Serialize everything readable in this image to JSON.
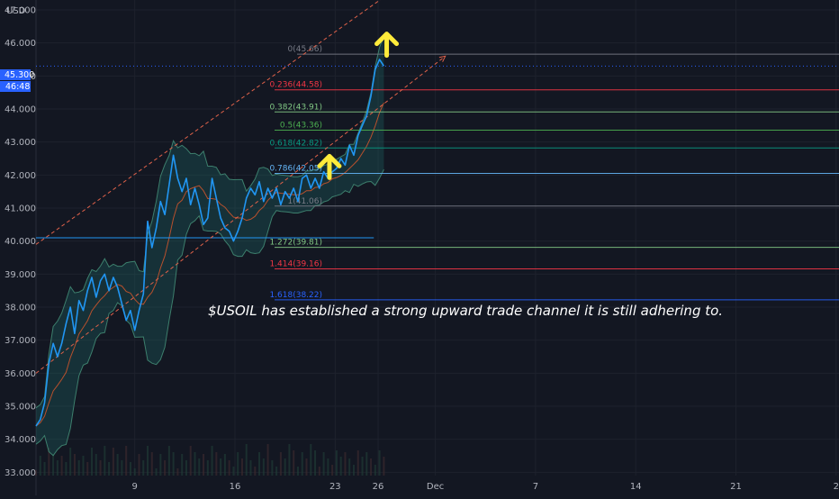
{
  "chart_data": {
    "type": "line",
    "currency": "USD",
    "y_ticks": [
      "47.000",
      "46.000",
      "45.000",
      "44.000",
      "43.000",
      "42.000",
      "41.000",
      "40.000",
      "39.000",
      "38.000",
      "37.000",
      "36.000",
      "35.000",
      "34.000",
      "33.000"
    ],
    "ylim": [
      32.3,
      47.3
    ],
    "x_ticks": [
      {
        "label": "9",
        "day": 9
      },
      {
        "label": "16",
        "day": 16
      },
      {
        "label": "23",
        "day": 23
      },
      {
        "label": "26",
        "day": 26
      },
      {
        "label": "Dec",
        "day": 30
      },
      {
        "label": "7",
        "day": 37
      },
      {
        "label": "14",
        "day": 44
      },
      {
        "label": "21",
        "day": 51
      },
      {
        "label": "2",
        "day": 58
      }
    ],
    "xlim": [
      2.1,
      58.2
    ],
    "price_label": {
      "value": "45.300",
      "countdown": "46:48",
      "price": 45.3
    },
    "price_series": [
      [
        2.1,
        34.4
      ],
      [
        2.4,
        34.6
      ],
      [
        2.7,
        35.1
      ],
      [
        3.0,
        36.3
      ],
      [
        3.3,
        36.9
      ],
      [
        3.6,
        36.5
      ],
      [
        3.9,
        36.9
      ],
      [
        4.2,
        37.5
      ],
      [
        4.5,
        38.0
      ],
      [
        4.8,
        37.2
      ],
      [
        5.1,
        38.2
      ],
      [
        5.4,
        37.9
      ],
      [
        5.7,
        38.5
      ],
      [
        6.0,
        38.9
      ],
      [
        6.3,
        38.3
      ],
      [
        6.6,
        38.8
      ],
      [
        6.9,
        39.0
      ],
      [
        7.2,
        38.5
      ],
      [
        7.5,
        38.9
      ],
      [
        7.8,
        38.6
      ],
      [
        8.1,
        38.1
      ],
      [
        8.4,
        37.6
      ],
      [
        8.7,
        37.9
      ],
      [
        9.0,
        37.3
      ],
      [
        9.3,
        37.9
      ],
      [
        9.6,
        38.4
      ],
      [
        9.9,
        40.6
      ],
      [
        10.2,
        39.8
      ],
      [
        10.5,
        40.4
      ],
      [
        10.8,
        41.2
      ],
      [
        11.1,
        40.8
      ],
      [
        11.4,
        41.7
      ],
      [
        11.7,
        42.6
      ],
      [
        12.0,
        41.9
      ],
      [
        12.3,
        41.5
      ],
      [
        12.6,
        41.9
      ],
      [
        12.9,
        41.1
      ],
      [
        13.2,
        41.6
      ],
      [
        13.5,
        41.1
      ],
      [
        13.8,
        40.5
      ],
      [
        14.1,
        40.7
      ],
      [
        14.4,
        41.9
      ],
      [
        14.7,
        41.3
      ],
      [
        15.0,
        40.7
      ],
      [
        15.3,
        40.4
      ],
      [
        15.6,
        40.3
      ],
      [
        15.9,
        40.0
      ],
      [
        16.2,
        40.3
      ],
      [
        16.5,
        40.7
      ],
      [
        16.8,
        41.3
      ],
      [
        17.1,
        41.6
      ],
      [
        17.4,
        41.4
      ],
      [
        17.7,
        41.8
      ],
      [
        18.0,
        41.2
      ],
      [
        18.3,
        41.6
      ],
      [
        18.6,
        41.3
      ],
      [
        18.9,
        41.6
      ],
      [
        19.2,
        41.1
      ],
      [
        19.5,
        41.5
      ],
      [
        19.8,
        41.3
      ],
      [
        20.1,
        41.6
      ],
      [
        20.4,
        41.2
      ],
      [
        20.7,
        41.9
      ],
      [
        21.0,
        42.0
      ],
      [
        21.3,
        41.6
      ],
      [
        21.6,
        41.9
      ],
      [
        21.9,
        41.6
      ],
      [
        22.2,
        42.1
      ],
      [
        22.5,
        41.9
      ],
      [
        22.8,
        42.1
      ],
      [
        23.1,
        42.2
      ],
      [
        23.4,
        42.5
      ],
      [
        23.7,
        42.3
      ],
      [
        24.0,
        42.9
      ],
      [
        24.3,
        42.6
      ],
      [
        24.6,
        43.2
      ],
      [
        24.9,
        43.5
      ],
      [
        25.2,
        43.8
      ],
      [
        25.5,
        44.4
      ],
      [
        25.8,
        45.2
      ],
      [
        26.1,
        45.5
      ],
      [
        26.4,
        45.3
      ]
    ],
    "fib_levels": [
      {
        "label": "0(45.66)",
        "value": 45.66,
        "color": "#787b86"
      },
      {
        "label": "0.236(44.58)",
        "value": 44.58,
        "color": "#f23645"
      },
      {
        "label": "0.382(43.91)",
        "value": 43.91,
        "color": "#81c784"
      },
      {
        "label": "0.5(43.36)",
        "value": 43.36,
        "color": "#4caf50"
      },
      {
        "label": "0.618(42.82)",
        "value": 42.82,
        "color": "#089981"
      },
      {
        "label": "0.786(42.05)",
        "value": 42.05,
        "color": "#64b5f6"
      },
      {
        "label": "1(41.06)",
        "value": 41.06,
        "color": "#787b86"
      },
      {
        "label": "1.272(39.81)",
        "value": 39.81,
        "color": "#81c784"
      },
      {
        "label": "1.414(39.16)",
        "value": 39.16,
        "color": "#f23645"
      },
      {
        "label": "1.618(38.22)",
        "value": 38.22,
        "color": "#2962ff"
      }
    ],
    "support_line": {
      "value": 40.1,
      "x_start": 2.1,
      "x_end": 25.7
    },
    "channel_lines": [
      {
        "from": [
          2.1,
          39.9
        ],
        "to": [
          28.4,
          48.0
        ]
      },
      {
        "from": [
          2.1,
          36.0
        ],
        "to": [
          30.7,
          45.6
        ]
      }
    ],
    "arrows": [
      {
        "day": 22.6,
        "value": 42.3
      },
      {
        "day": 26.6,
        "value": 46.0
      }
    ],
    "annotation": "$USOIL has established a strong upward trade channel it is still adhering to."
  },
  "colors": {
    "background": "#131722",
    "price_line": "#2196f3",
    "band_fill": "#1e6b66",
    "band_line": "#3d7f6d",
    "basis": "#e0592b",
    "channel": "#e0624a",
    "arrow": "#ffeb3b",
    "axis_text": "#b2b5be",
    "price_tag": "#2962ff"
  }
}
